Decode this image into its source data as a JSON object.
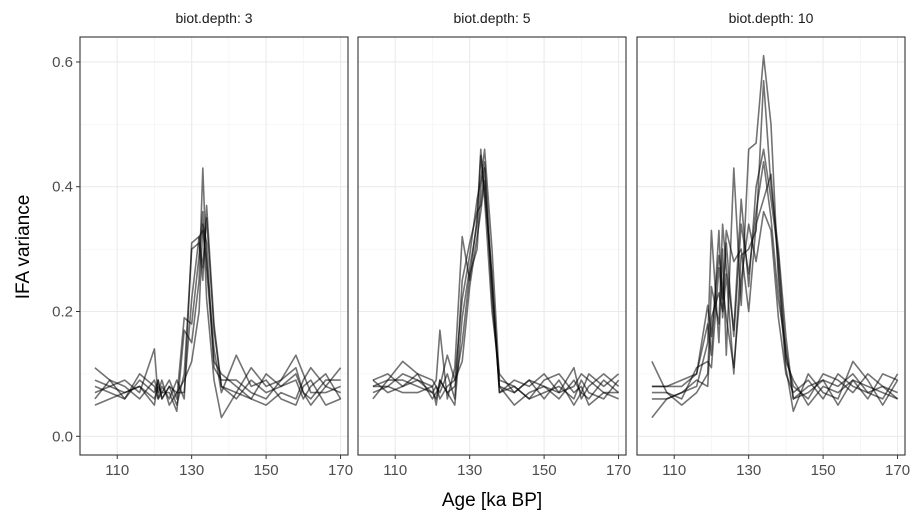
{
  "chart_data": {
    "type": "line",
    "facet_label": "biot.depth",
    "xlabel": "Age [ka BP]",
    "ylabel": "IFA variance",
    "xlim": [
      100,
      172
    ],
    "ylim": [
      -0.03,
      0.64
    ],
    "x_ticks": [
      110,
      130,
      150,
      170
    ],
    "y_ticks": [
      0.0,
      0.2,
      0.4,
      0.6
    ],
    "y_tick_labels": [
      "0.0",
      "0.2",
      "0.4",
      "0.6"
    ],
    "grid": true,
    "line_color": "#000000",
    "line_opacity": 0.55,
    "panels": [
      {
        "strip": "biot.depth: 3",
        "series": [
          {
            "x": [
              104,
              108,
              112,
              116,
              120,
              121,
              122,
              124,
              126,
              128,
              130,
              132,
              133,
              134,
              136,
              138,
              142,
              146,
              150,
              154,
              158,
              160,
              162,
              166,
              170
            ],
            "y": [
              0.11,
              0.09,
              0.06,
              0.09,
              0.07,
              0.09,
              0.06,
              0.08,
              0.05,
              0.1,
              0.3,
              0.31,
              0.25,
              0.37,
              0.18,
              0.08,
              0.06,
              0.09,
              0.07,
              0.08,
              0.1,
              0.07,
              0.06,
              0.09,
              0.09
            ]
          },
          {
            "x": [
              104,
              108,
              112,
              116,
              120,
              121,
              122,
              124,
              126,
              128,
              130,
              132,
              133,
              134,
              136,
              138,
              142,
              146,
              150,
              154,
              158,
              160,
              162,
              166,
              170
            ],
            "y": [
              0.09,
              0.08,
              0.09,
              0.07,
              0.14,
              0.06,
              0.07,
              0.07,
              0.04,
              0.17,
              0.15,
              0.25,
              0.43,
              0.27,
              0.12,
              0.1,
              0.08,
              0.06,
              0.05,
              0.07,
              0.06,
              0.09,
              0.11,
              0.08,
              0.07
            ]
          },
          {
            "x": [
              104,
              108,
              112,
              116,
              120,
              121,
              122,
              124,
              126,
              128,
              130,
              132,
              133,
              134,
              136,
              138,
              142,
              146,
              150,
              154,
              158,
              160,
              162,
              166,
              170
            ],
            "y": [
              0.05,
              0.06,
              0.07,
              0.08,
              0.06,
              0.08,
              0.07,
              0.09,
              0.06,
              0.19,
              0.18,
              0.29,
              0.36,
              0.22,
              0.09,
              0.03,
              0.07,
              0.11,
              0.08,
              0.09,
              0.11,
              0.07,
              0.05,
              0.08,
              0.11
            ]
          },
          {
            "x": [
              104,
              108,
              112,
              116,
              120,
              121,
              122,
              124,
              126,
              128,
              130,
              132,
              133,
              134,
              136,
              138,
              142,
              146,
              150,
              154,
              158,
              160,
              162,
              166,
              170
            ],
            "y": [
              0.06,
              0.09,
              0.08,
              0.06,
              0.09,
              0.07,
              0.09,
              0.05,
              0.07,
              0.07,
              0.22,
              0.32,
              0.33,
              0.28,
              0.14,
              0.07,
              0.13,
              0.08,
              0.09,
              0.06,
              0.05,
              0.08,
              0.09,
              0.05,
              0.06
            ]
          },
          {
            "x": [
              104,
              108,
              112,
              116,
              120,
              121,
              122,
              124,
              126,
              128,
              130,
              132,
              133,
              134,
              136,
              138,
              142,
              146,
              150,
              154,
              158,
              160,
              162,
              166,
              170
            ],
            "y": [
              0.08,
              0.07,
              0.06,
              0.1,
              0.08,
              0.06,
              0.08,
              0.06,
              0.09,
              0.06,
              0.31,
              0.32,
              0.27,
              0.35,
              0.17,
              0.08,
              0.07,
              0.06,
              0.1,
              0.08,
              0.09,
              0.06,
              0.08,
              0.1,
              0.06
            ]
          },
          {
            "x": [
              104,
              108,
              112,
              116,
              120,
              121,
              122,
              124,
              126,
              128,
              130,
              132,
              133,
              134,
              136,
              138,
              142,
              146,
              150,
              154,
              158,
              160,
              162,
              166,
              170
            ],
            "y": [
              0.07,
              0.08,
              0.07,
              0.08,
              0.05,
              0.09,
              0.06,
              0.08,
              0.07,
              0.09,
              0.12,
              0.2,
              0.34,
              0.31,
              0.11,
              0.09,
              0.09,
              0.07,
              0.06,
              0.09,
              0.13,
              0.1,
              0.07,
              0.07,
              0.08
            ]
          }
        ]
      },
      {
        "strip": "biot.depth: 5",
        "series": [
          {
            "x": [
              104,
              108,
              112,
              116,
              120,
              121,
              122,
              124,
              126,
              128,
              130,
              132,
              133,
              134,
              136,
              138,
              142,
              146,
              150,
              154,
              158,
              160,
              162,
              166,
              170
            ],
            "y": [
              0.08,
              0.09,
              0.09,
              0.08,
              0.07,
              0.06,
              0.09,
              0.07,
              0.08,
              0.15,
              0.26,
              0.3,
              0.4,
              0.44,
              0.25,
              0.07,
              0.08,
              0.06,
              0.07,
              0.08,
              0.06,
              0.09,
              0.07,
              0.06,
              0.09
            ]
          },
          {
            "x": [
              104,
              108,
              112,
              116,
              120,
              121,
              122,
              124,
              126,
              128,
              130,
              132,
              133,
              134,
              136,
              138,
              142,
              146,
              150,
              154,
              158,
              160,
              162,
              166,
              170
            ],
            "y": [
              0.07,
              0.08,
              0.1,
              0.09,
              0.08,
              0.09,
              0.17,
              0.06,
              0.11,
              0.32,
              0.25,
              0.35,
              0.46,
              0.38,
              0.2,
              0.1,
              0.07,
              0.09,
              0.08,
              0.07,
              0.11,
              0.06,
              0.08,
              0.1,
              0.08
            ]
          },
          {
            "x": [
              104,
              108,
              112,
              116,
              120,
              121,
              122,
              124,
              126,
              128,
              130,
              132,
              133,
              134,
              136,
              138,
              142,
              146,
              150,
              154,
              158,
              160,
              162,
              166,
              170
            ],
            "y": [
              0.09,
              0.07,
              0.08,
              0.1,
              0.06,
              0.07,
              0.08,
              0.13,
              0.09,
              0.22,
              0.29,
              0.38,
              0.41,
              0.46,
              0.3,
              0.09,
              0.08,
              0.06,
              0.09,
              0.1,
              0.07,
              0.08,
              0.05,
              0.07,
              0.07
            ]
          },
          {
            "x": [
              104,
              108,
              112,
              116,
              120,
              121,
              122,
              124,
              126,
              128,
              130,
              132,
              133,
              134,
              136,
              138,
              142,
              146,
              150,
              154,
              158,
              160,
              162,
              166,
              170
            ],
            "y": [
              0.06,
              0.09,
              0.12,
              0.1,
              0.09,
              0.08,
              0.07,
              0.1,
              0.06,
              0.25,
              0.31,
              0.36,
              0.37,
              0.43,
              0.22,
              0.08,
              0.05,
              0.07,
              0.08,
              0.06,
              0.09,
              0.07,
              0.1,
              0.08,
              0.1
            ]
          },
          {
            "x": [
              104,
              108,
              112,
              116,
              120,
              121,
              122,
              124,
              126,
              128,
              130,
              132,
              133,
              134,
              136,
              138,
              142,
              146,
              150,
              154,
              158,
              160,
              162,
              166,
              170
            ],
            "y": [
              0.08,
              0.08,
              0.07,
              0.07,
              0.08,
              0.05,
              0.09,
              0.07,
              0.05,
              0.19,
              0.27,
              0.34,
              0.45,
              0.39,
              0.26,
              0.07,
              0.09,
              0.08,
              0.1,
              0.07,
              0.08,
              0.1,
              0.09,
              0.07,
              0.06
            ]
          },
          {
            "x": [
              104,
              108,
              112,
              116,
              120,
              121,
              122,
              124,
              126,
              128,
              130,
              132,
              133,
              134,
              136,
              138,
              142,
              146,
              150,
              154,
              158,
              160,
              162,
              166,
              170
            ],
            "y": [
              0.09,
              0.1,
              0.08,
              0.09,
              0.07,
              0.08,
              0.06,
              0.08,
              0.09,
              0.12,
              0.24,
              0.32,
              0.36,
              0.41,
              0.24,
              0.08,
              0.07,
              0.09,
              0.06,
              0.09,
              0.05,
              0.07,
              0.06,
              0.09,
              0.07
            ]
          }
        ]
      },
      {
        "strip": "biot.depth: 10",
        "series": [
          {
            "x": [
              104,
              108,
              112,
              116,
              119,
              120,
              122,
              123,
              124,
              126,
              128,
              130,
              132,
              134,
              136,
              138,
              140,
              142,
              146,
              150,
              154,
              158,
              162,
              166,
              170
            ],
            "y": [
              0.08,
              0.08,
              0.08,
              0.1,
              0.18,
              0.13,
              0.33,
              0.19,
              0.26,
              0.1,
              0.29,
              0.3,
              0.33,
              0.57,
              0.4,
              0.3,
              0.16,
              0.06,
              0.07,
              0.09,
              0.08,
              0.1,
              0.07,
              0.08,
              0.07
            ]
          },
          {
            "x": [
              104,
              108,
              112,
              116,
              119,
              120,
              122,
              123,
              124,
              126,
              128,
              130,
              132,
              134,
              136,
              138,
              140,
              142,
              146,
              150,
              154,
              158,
              162,
              166,
              170
            ],
            "y": [
              0.03,
              0.06,
              0.07,
              0.08,
              0.15,
              0.33,
              0.15,
              0.3,
              0.13,
              0.43,
              0.21,
              0.46,
              0.47,
              0.61,
              0.5,
              0.25,
              0.11,
              0.04,
              0.1,
              0.07,
              0.06,
              0.12,
              0.09,
              0.05,
              0.09
            ]
          },
          {
            "x": [
              104,
              108,
              112,
              116,
              119,
              120,
              122,
              123,
              124,
              126,
              128,
              130,
              132,
              134,
              136,
              138,
              140,
              142,
              146,
              150,
              154,
              158,
              162,
              166,
              170
            ],
            "y": [
              0.12,
              0.07,
              0.05,
              0.07,
              0.1,
              0.24,
              0.18,
              0.34,
              0.27,
              0.17,
              0.38,
              0.24,
              0.4,
              0.46,
              0.38,
              0.29,
              0.13,
              0.08,
              0.06,
              0.1,
              0.09,
              0.07,
              0.1,
              0.08,
              0.06
            ]
          },
          {
            "x": [
              104,
              108,
              112,
              116,
              119,
              120,
              122,
              123,
              124,
              126,
              128,
              130,
              132,
              134,
              136,
              138,
              140,
              142,
              146,
              150,
              154,
              158,
              162,
              166,
              170
            ],
            "y": [
              0.07,
              0.07,
              0.06,
              0.11,
              0.12,
              0.11,
              0.27,
              0.22,
              0.33,
              0.28,
              0.3,
              0.2,
              0.34,
              0.38,
              0.42,
              0.27,
              0.12,
              0.09,
              0.05,
              0.08,
              0.07,
              0.09,
              0.06,
              0.1,
              0.09
            ]
          },
          {
            "x": [
              104,
              108,
              112,
              116,
              119,
              120,
              122,
              123,
              124,
              126,
              128,
              130,
              132,
              134,
              136,
              138,
              140,
              142,
              146,
              150,
              154,
              158,
              162,
              166,
              170
            ],
            "y": [
              0.08,
              0.08,
              0.09,
              0.1,
              0.21,
              0.16,
              0.29,
              0.24,
              0.19,
              0.11,
              0.25,
              0.34,
              0.28,
              0.36,
              0.33,
              0.19,
              0.1,
              0.07,
              0.09,
              0.06,
              0.1,
              0.08,
              0.07,
              0.06,
              0.1
            ]
          },
          {
            "x": [
              104,
              108,
              112,
              116,
              119,
              120,
              122,
              123,
              124,
              126,
              128,
              130,
              132,
              134,
              136,
              138,
              140,
              142,
              146,
              150,
              154,
              158,
              162,
              166,
              170
            ],
            "y": [
              0.06,
              0.06,
              0.07,
              0.09,
              0.08,
              0.19,
              0.23,
              0.2,
              0.31,
              0.16,
              0.34,
              0.26,
              0.36,
              0.44,
              0.35,
              0.22,
              0.14,
              0.06,
              0.08,
              0.09,
              0.05,
              0.09,
              0.08,
              0.07,
              0.06
            ]
          }
        ]
      }
    ]
  }
}
